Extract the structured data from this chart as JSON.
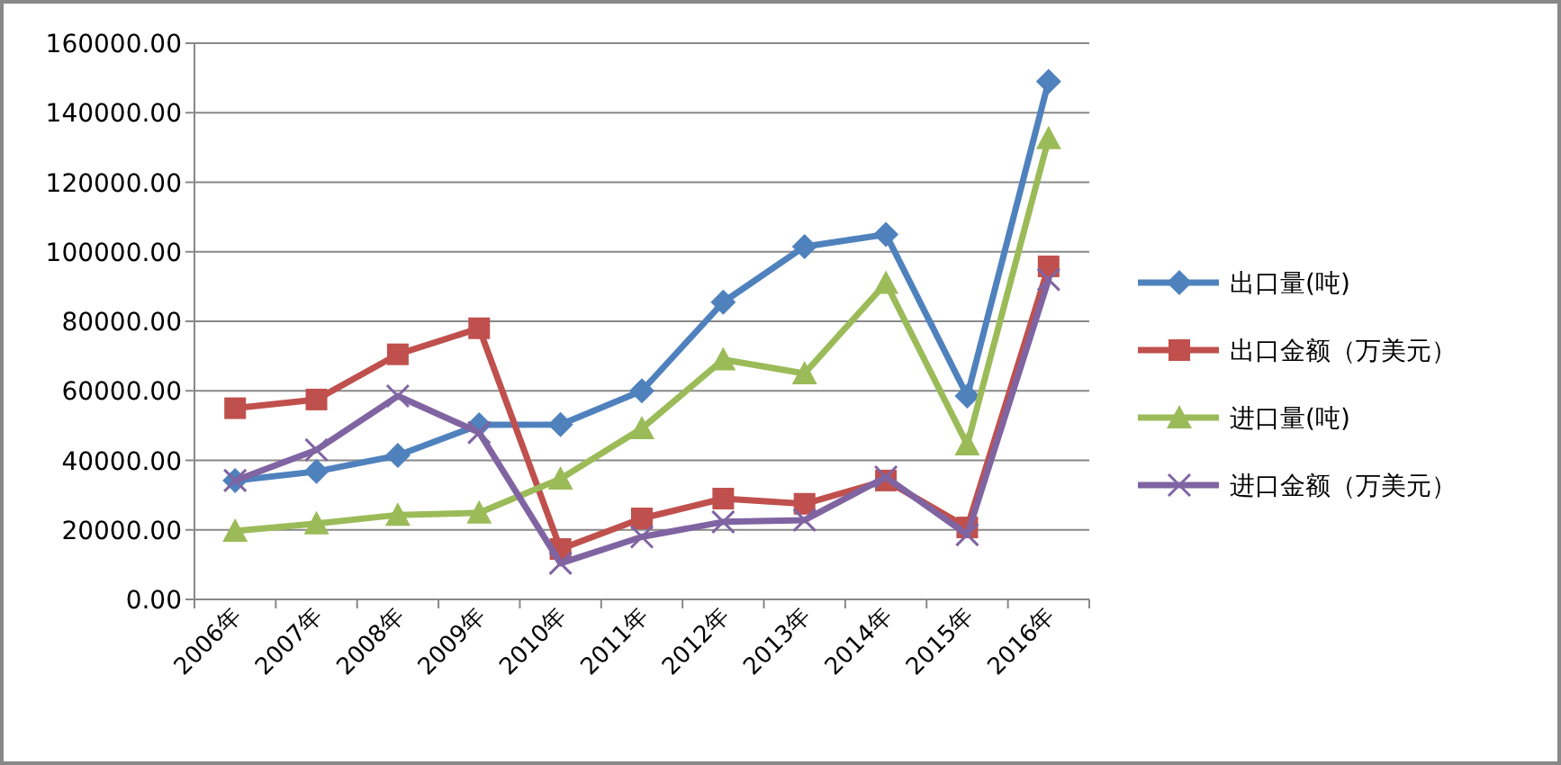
{
  "chart_data": {
    "type": "line",
    "categories": [
      "2006年",
      "2007年",
      "2008年",
      "2009年",
      "2010年",
      "2011年",
      "2012年",
      "2013年",
      "2014年",
      "2015年",
      "2016年"
    ],
    "series": [
      {
        "name": "出口量(吨)",
        "color": "#4f81bd",
        "marker": "diamond",
        "values": [
          34200,
          36800,
          41400,
          50200,
          50300,
          60000,
          85500,
          101500,
          105000,
          58500,
          149000
        ]
      },
      {
        "name": "出口金额（万美元）",
        "color": "#c0504d",
        "marker": "square",
        "values": [
          55000,
          57500,
          70500,
          78000,
          14500,
          23300,
          29000,
          27500,
          34200,
          20700,
          95800
        ]
      },
      {
        "name": "进口量(吨)",
        "color": "#9bbb59",
        "marker": "triangle",
        "values": [
          19700,
          21800,
          24300,
          24900,
          34700,
          49200,
          69000,
          65000,
          91000,
          44500,
          132600
        ]
      },
      {
        "name": "进口金额（万美元）",
        "color": "#8064a2",
        "marker": "cross",
        "values": [
          34200,
          43000,
          58500,
          48000,
          10400,
          18000,
          22300,
          22800,
          35200,
          18600,
          92000
        ]
      }
    ],
    "ylim": [
      0,
      160000
    ],
    "yticks": [
      {
        "value": 0,
        "label": "0.00"
      },
      {
        "value": 20000,
        "label": "20000.00"
      },
      {
        "value": 40000,
        "label": "40000.00"
      },
      {
        "value": 60000,
        "label": "60000.00"
      },
      {
        "value": 80000,
        "label": "80000.00"
      },
      {
        "value": 100000,
        "label": "100000.00"
      },
      {
        "value": 120000,
        "label": "120000.00"
      },
      {
        "value": 140000,
        "label": "140000.00"
      },
      {
        "value": 160000,
        "label": "160000.00"
      }
    ],
    "grid": "y",
    "legend": "right"
  }
}
